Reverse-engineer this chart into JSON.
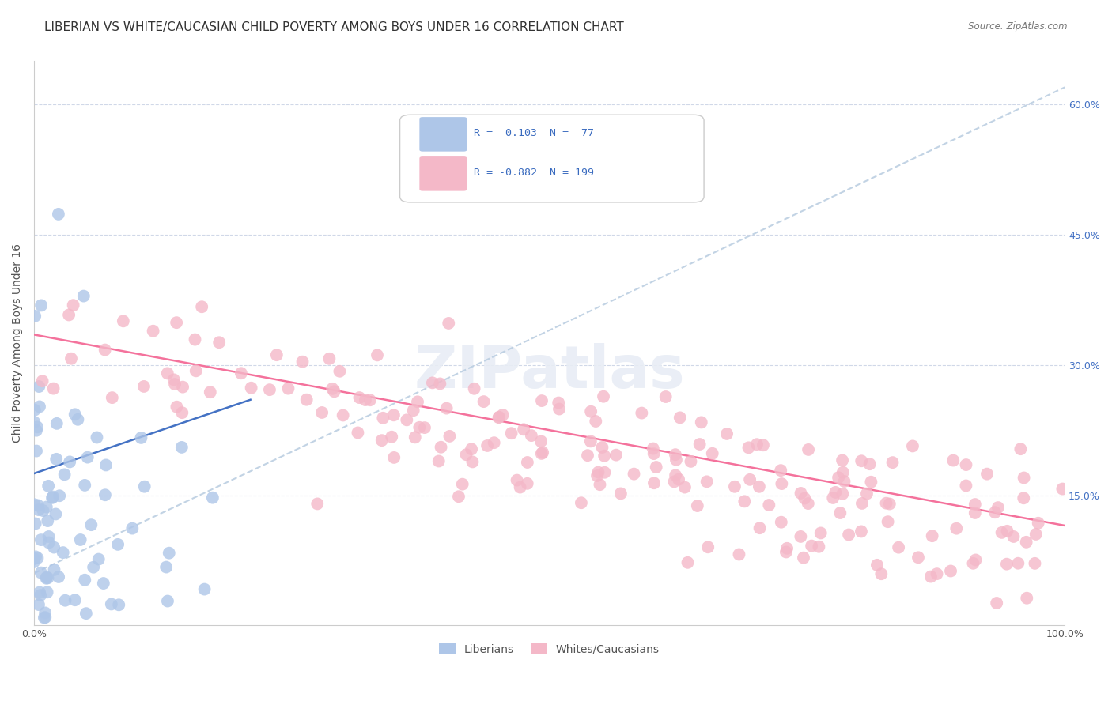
{
  "title": "LIBERIAN VS WHITE/CAUCASIAN CHILD POVERTY AMONG BOYS UNDER 16 CORRELATION CHART",
  "source": "Source: ZipAtlas.com",
  "ylabel": "Child Poverty Among Boys Under 16",
  "xlim": [
    0,
    1.0
  ],
  "ylim": [
    0,
    0.65
  ],
  "y_ticks_right": [
    0.15,
    0.3,
    0.45,
    0.6
  ],
  "y_tick_labels_right": [
    "15.0%",
    "30.0%",
    "45.0%",
    "60.0%"
  ],
  "blue_r": 0.103,
  "blue_n": 77,
  "pink_r": -0.882,
  "pink_n": 199,
  "blue_scatter_color": "#aec6e8",
  "pink_scatter_color": "#f4b8c8",
  "blue_line_color": "#4472c4",
  "pink_line_color": "#f4729c",
  "trendline_dashed_color": "#b8cce0",
  "background_color": "#ffffff",
  "grid_color": "#d0d8e8",
  "title_fontsize": 11,
  "axis_label_fontsize": 10,
  "tick_fontsize": 9,
  "random_seed_blue": 42,
  "random_seed_pink": 123
}
